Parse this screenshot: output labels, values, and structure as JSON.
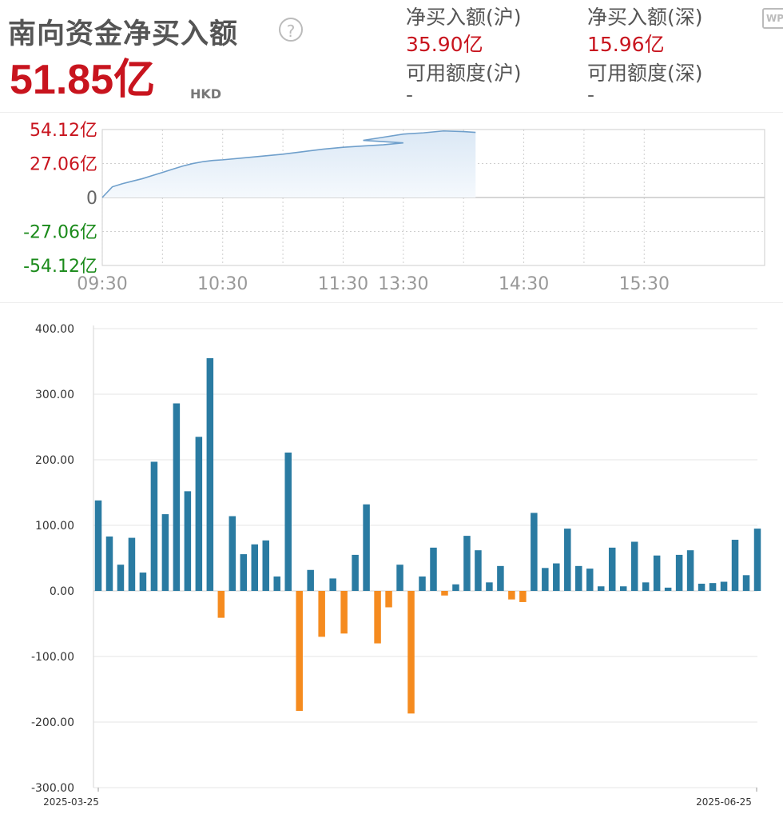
{
  "header": {
    "title": "南向资金净买入额",
    "help_icon": "?",
    "total_value": "51.85亿",
    "currency": "HKD",
    "wp_icon": "WP"
  },
  "stats": {
    "sh_net_label": "净买入额(沪)",
    "sh_net_value": "35.90亿",
    "sz_net_label": "净买入额(深)",
    "sz_net_value": "15.96亿",
    "sh_quota_label": "可用额度(沪)",
    "sh_quota_value": "-",
    "sz_quota_label": "可用额度(深)",
    "sz_quota_value": "-"
  },
  "colors": {
    "positive_text": "#c8141e",
    "negative_text": "#1a8a1a",
    "line": "#6f9fcb",
    "bar_positive": "#2a7ba2",
    "bar_negative": "#f58b1f"
  },
  "chart_data": [
    {
      "type": "area",
      "y_tick_labels": [
        "54.12亿",
        "27.06亿",
        "0",
        "-27.06亿",
        "-54.12亿"
      ],
      "y_ticks": [
        54.12,
        27.06,
        0,
        -27.06,
        -54.12
      ],
      "ylim": [
        -54.12,
        54.12
      ],
      "x_tick_labels": [
        "09:30",
        "10:30",
        "11:30",
        "13:30",
        "14:30",
        "15:30"
      ],
      "x": [
        "09:30",
        "09:35",
        "09:40",
        "09:45",
        "09:50",
        "09:55",
        "10:00",
        "10:05",
        "10:10",
        "10:15",
        "10:20",
        "10:25",
        "10:30",
        "10:40",
        "10:50",
        "11:00",
        "11:10",
        "11:20",
        "11:30",
        "11:40",
        "11:50",
        "12:00",
        "13:10",
        "13:20",
        "13:30",
        "13:40",
        "13:50",
        "14:00",
        "14:06"
      ],
      "y": [
        0,
        8.5,
        11.0,
        13.0,
        15.0,
        17.5,
        20.0,
        22.5,
        25.0,
        27.0,
        28.5,
        29.5,
        30.0,
        31.5,
        33.0,
        34.5,
        36.5,
        38.5,
        40.0,
        41.0,
        42.0,
        43.5,
        45.5,
        48.0,
        50.5,
        51.5,
        53.0,
        52.5,
        51.85
      ],
      "grid": true
    },
    {
      "type": "bar",
      "x_first": "2025-03-25",
      "x_last": "2025-06-25",
      "ylim": [
        -300,
        400
      ],
      "y_tick_labels": [
        "400.00",
        "300.00",
        "200.00",
        "100.00",
        "0.00",
        "-100.00",
        "-200.00",
        "-300.00"
      ],
      "y_ticks": [
        400,
        300,
        200,
        100,
        0,
        -100,
        -200,
        -300
      ],
      "values": [
        138,
        83,
        40,
        81,
        28,
        197,
        117,
        286,
        152,
        235,
        355,
        -41,
        114,
        56,
        71,
        77,
        22,
        211,
        -183,
        32,
        -70,
        19,
        -65,
        55,
        132,
        -80,
        -25,
        40,
        -187,
        22,
        66,
        -7,
        10,
        84,
        62,
        13,
        38,
        -13,
        -17,
        119,
        35,
        42,
        95,
        38,
        34,
        7,
        66,
        7,
        75,
        13,
        54,
        5,
        55,
        62,
        11,
        12,
        14,
        78,
        24,
        95
      ],
      "grid": true
    }
  ]
}
